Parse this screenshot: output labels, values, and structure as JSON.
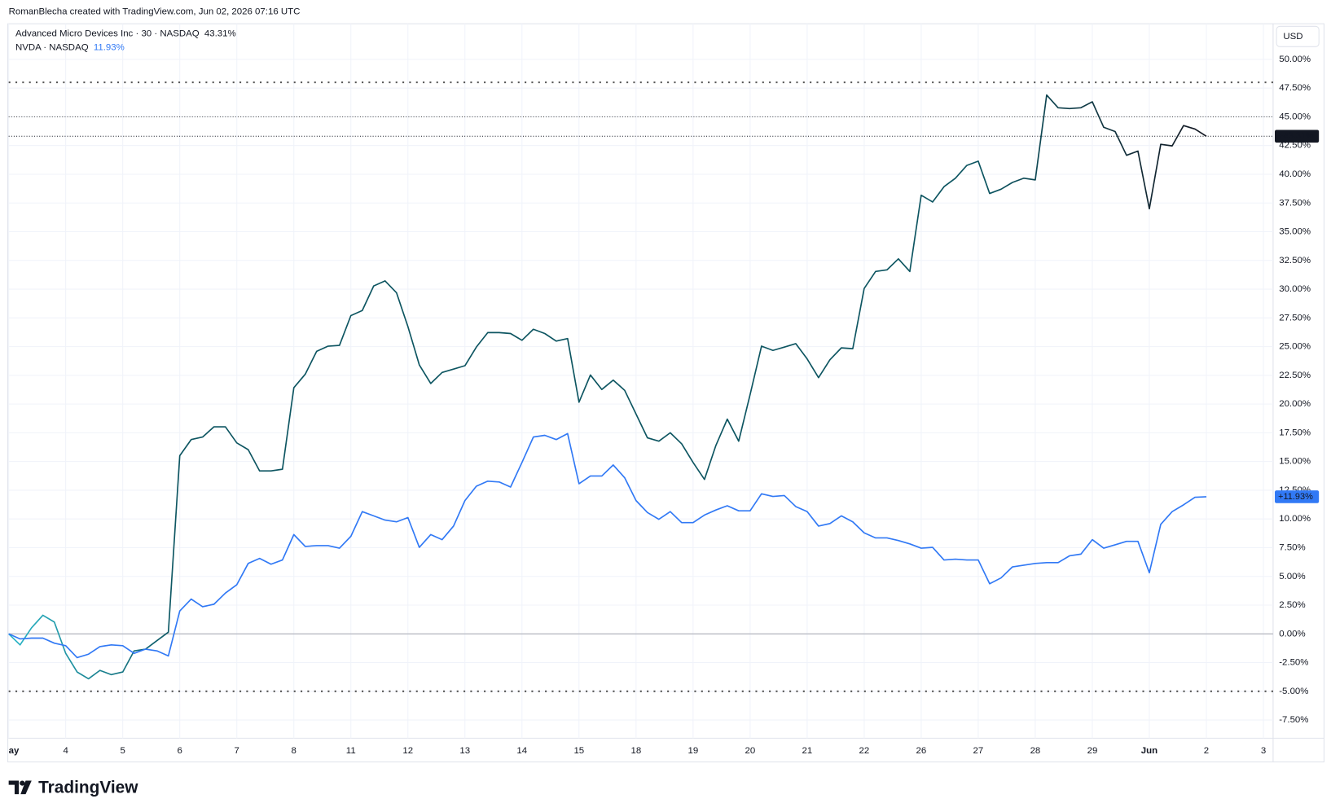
{
  "chart_data": {
    "type": "line",
    "attribution": "RomanBlecha created with TradingView.com, Jun 02, 2026 07:16 UTC",
    "currency": "USD",
    "brand": "TradingView",
    "x": [
      0,
      0.2,
      0.4,
      0.6,
      0.8,
      1,
      1.2,
      1.4,
      1.6,
      1.8,
      2,
      2.2,
      2.4,
      2.6,
      2.8,
      3,
      3.2,
      3.4,
      3.6,
      3.8,
      4,
      4.2,
      4.4,
      4.6,
      4.8,
      5,
      5.2,
      5.4,
      5.6,
      5.8,
      6,
      6.2,
      6.4,
      6.6,
      6.8,
      7,
      7.2,
      7.4,
      7.6,
      7.8,
      8,
      8.2,
      8.4,
      8.6,
      8.8,
      9,
      9.2,
      9.4,
      9.6,
      9.8,
      10,
      10.2,
      10.4,
      10.6,
      10.8,
      11,
      11.2,
      11.4,
      11.6,
      11.8,
      12,
      12.2,
      12.4,
      12.6,
      12.8,
      13,
      13.2,
      13.4,
      13.6,
      13.8,
      14,
      14.2,
      14.4,
      14.6,
      14.8,
      15,
      15.2,
      15.4,
      15.6,
      15.8,
      16,
      16.2,
      16.4,
      16.6,
      16.8,
      17,
      17.2,
      17.4,
      17.6,
      17.8,
      18,
      18.2,
      18.4,
      18.6,
      18.8,
      19,
      19.2,
      19.4,
      19.6,
      19.8,
      20,
      20.2,
      20.4,
      20.6,
      20.8,
      21
    ],
    "series": [
      {
        "name": "Advanced Micro Devices Inc · 30 · NASDAQ",
        "legend_value": "43.31%",
        "price_tag": "+43.31%",
        "color": "#0d5561",
        "colors": [
          "#2ab7c9",
          "#0d5561",
          "#0d5561",
          "#131722"
        ],
        "values": [
          0,
          -0.96,
          0.52,
          1.62,
          1.03,
          -1.7,
          -3.32,
          -3.91,
          -3.18,
          -3.55,
          -3.32,
          -1.48,
          -1.33,
          -0.59,
          0.15,
          15.51,
          16.91,
          17.13,
          18.02,
          18.02,
          16.62,
          16.03,
          14.18,
          14.18,
          14.33,
          21.42,
          22.6,
          24.59,
          25.04,
          25.11,
          27.7,
          28.14,
          30.28,
          30.72,
          29.69,
          26.74,
          23.41,
          21.79,
          22.75,
          23.04,
          23.34,
          24.96,
          26.22,
          26.22,
          26.14,
          25.55,
          26.51,
          26.14,
          25.48,
          25.7,
          20.16,
          22.53,
          21.27,
          22.08,
          21.2,
          19.13,
          17.06,
          16.77,
          17.5,
          16.54,
          14.92,
          13.44,
          16.4,
          18.69,
          16.77,
          20.83,
          25.04,
          24.67,
          24.96,
          25.26,
          23.93,
          22.3,
          23.86,
          24.89,
          24.82,
          30.06,
          31.54,
          31.68,
          32.64,
          31.54,
          38.18,
          37.59,
          38.92,
          39.66,
          40.77,
          41.14,
          38.33,
          38.7,
          39.29,
          39.66,
          39.51,
          46.9,
          45.79,
          45.72,
          45.79,
          46.31,
          44.09,
          43.72,
          41.65,
          42.02,
          37.0,
          42.61,
          42.47,
          44.24,
          43.94,
          43.31
        ]
      },
      {
        "name": "NVDA · NASDAQ",
        "legend_value": "11.93%",
        "price_tag": "+11.93%",
        "color": "#3179f5",
        "values": [
          0,
          -0.44,
          -0.37,
          -0.37,
          -0.81,
          -1.03,
          -2.07,
          -1.77,
          -1.11,
          -0.96,
          -1.03,
          -1.7,
          -1.33,
          -1.48,
          -1.92,
          1.99,
          3.03,
          2.36,
          2.58,
          3.55,
          4.28,
          6.13,
          6.57,
          6.06,
          6.43,
          8.64,
          7.61,
          7.68,
          7.68,
          7.46,
          8.49,
          10.64,
          10.27,
          9.9,
          9.75,
          10.12,
          7.53,
          8.64,
          8.2,
          9.38,
          11.6,
          12.85,
          13.29,
          13.22,
          12.78,
          14.92,
          17.13,
          17.28,
          16.91,
          17.43,
          13.07,
          13.74,
          13.74,
          14.7,
          13.59,
          11.6,
          10.56,
          9.97,
          10.64,
          9.68,
          9.68,
          10.34,
          10.78,
          11.15,
          10.71,
          10.71,
          12.19,
          11.96,
          12.04,
          11.08,
          10.64,
          9.38,
          9.6,
          10.27,
          9.75,
          8.79,
          8.35,
          8.35,
          8.12,
          7.83,
          7.46,
          7.53,
          6.43,
          6.5,
          6.43,
          6.43,
          4.36,
          4.87,
          5.83,
          5.98,
          6.13,
          6.2,
          6.2,
          6.79,
          6.94,
          8.2,
          7.46,
          7.75,
          8.05,
          8.05,
          5.32,
          9.53,
          10.64,
          11.23,
          11.89,
          11.93
        ]
      }
    ],
    "xlim": [
      0,
      22.17
    ],
    "xticks": [
      {
        "value": 0,
        "label": "ay"
      },
      {
        "value": 1,
        "label": "4"
      },
      {
        "value": 2,
        "label": "5"
      },
      {
        "value": 3,
        "label": "6"
      },
      {
        "value": 4,
        "label": "7"
      },
      {
        "value": 5,
        "label": "8"
      },
      {
        "value": 6,
        "label": "11"
      },
      {
        "value": 7,
        "label": "12"
      },
      {
        "value": 8,
        "label": "13"
      },
      {
        "value": 9,
        "label": "14"
      },
      {
        "value": 10,
        "label": "15"
      },
      {
        "value": 11,
        "label": "18"
      },
      {
        "value": 12,
        "label": "19"
      },
      {
        "value": 13,
        "label": "20"
      },
      {
        "value": 14,
        "label": "21"
      },
      {
        "value": 15,
        "label": "22"
      },
      {
        "value": 16,
        "label": "26"
      },
      {
        "value": 17,
        "label": "27"
      },
      {
        "value": 18,
        "label": "28"
      },
      {
        "value": 19,
        "label": "29"
      },
      {
        "value": 20,
        "label": "Jun"
      },
      {
        "value": 21,
        "label": "2"
      },
      {
        "value": 22,
        "label": "3"
      }
    ],
    "ylim": [
      -9.08,
      53.1
    ],
    "yticks": [
      {
        "value": -7.5,
        "label": "-7.50%"
      },
      {
        "value": -5,
        "label": "-5.00%"
      },
      {
        "value": -2.5,
        "label": "-2.50%"
      },
      {
        "value": 0,
        "label": "0.00%"
      },
      {
        "value": 2.5,
        "label": "2.50%"
      },
      {
        "value": 5,
        "label": "5.00%"
      },
      {
        "value": 7.5,
        "label": "7.50%"
      },
      {
        "value": 10,
        "label": "10.00%"
      },
      {
        "value": 12.5,
        "label": "12.50%"
      },
      {
        "value": 15,
        "label": "15.00%"
      },
      {
        "value": 17.5,
        "label": "17.50%"
      },
      {
        "value": 20,
        "label": "20.00%"
      },
      {
        "value": 22.5,
        "label": "22.50%"
      },
      {
        "value": 25,
        "label": "25.00%"
      },
      {
        "value": 27.5,
        "label": "27.50%"
      },
      {
        "value": 30,
        "label": "30.00%"
      },
      {
        "value": 32.5,
        "label": "32.50%"
      },
      {
        "value": 35,
        "label": "35.00%"
      },
      {
        "value": 37.5,
        "label": "37.50%"
      },
      {
        "value": 40,
        "label": "40.00%"
      },
      {
        "value": 42.5,
        "label": "42.50%"
      },
      {
        "value": 45,
        "label": "45.00%"
      },
      {
        "value": 47.5,
        "label": "47.50%"
      },
      {
        "value": 50,
        "label": "50.00%"
      }
    ],
    "grid": true,
    "bold_dotted_lines": [
      48,
      -5
    ],
    "dotted_lines": [
      45
    ]
  }
}
